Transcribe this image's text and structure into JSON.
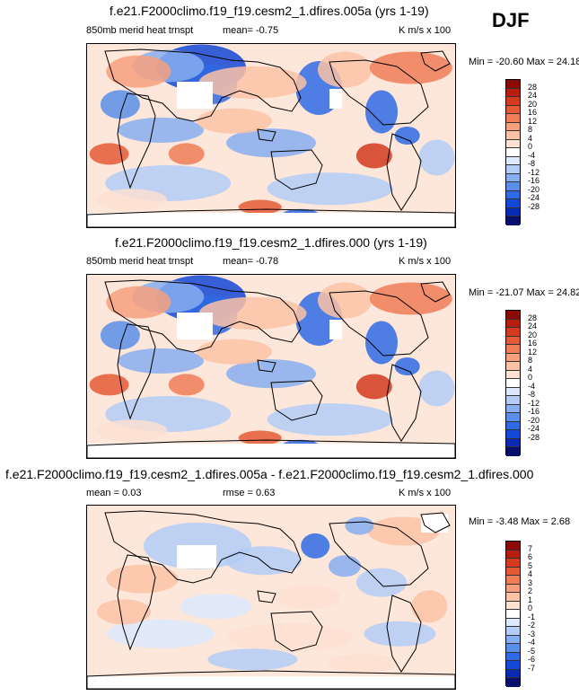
{
  "season": "DJF",
  "variable_label": "850mb merid heat trnspt",
  "units": "K m/s x 100",
  "colors": {
    "main_scale": [
      "#08106b",
      "#0a2ab5",
      "#1448d6",
      "#2f6ae4",
      "#5a8ee9",
      "#87aef0",
      "#b3cdf6",
      "#dce8fb",
      "#ffffff",
      "#fde1d2",
      "#fbc2a6",
      "#f7a07e",
      "#f07c58",
      "#e55a36",
      "#d43a1f",
      "#b81e10",
      "#8b0a06"
    ],
    "diff_scale": [
      "#08106b",
      "#0a2ab5",
      "#1448d6",
      "#2f6ae4",
      "#5a8ee9",
      "#87aef0",
      "#b3cdf6",
      "#dce8fb",
      "#ffffff",
      "#fde1d2",
      "#fbc2a6",
      "#f7a07e",
      "#f07c58",
      "#e55a36",
      "#d43a1f",
      "#b81e10",
      "#8b0a06"
    ]
  },
  "panels": [
    {
      "title": "f.e21.F2000climo.f19_f19.cesm2_1.dfires.005a (yrs 1-19)",
      "left_label": "850mb merid heat trnspt",
      "mid_label": "mean=  -0.75",
      "right_label": "K m/s x 100",
      "minmax": "Min = -20.60 Max =  24.18",
      "colorbar_labels": [
        "28",
        "24",
        "20",
        "16",
        "12",
        "8",
        "4",
        "0",
        "-4",
        "-8",
        "-12",
        "-16",
        "-20",
        "-24",
        "-28"
      ]
    },
    {
      "title": "f.e21.F2000climo.f19_f19.cesm2_1.dfires.000 (yrs 1-19)",
      "left_label": "850mb merid heat trnspt",
      "mid_label": "mean=  -0.78",
      "right_label": "K m/s x 100",
      "minmax": "Min = -21.07 Max =  24.82",
      "colorbar_labels": [
        "28",
        "24",
        "20",
        "16",
        "12",
        "8",
        "4",
        "0",
        "-4",
        "-8",
        "-12",
        "-16",
        "-20",
        "-24",
        "-28"
      ]
    },
    {
      "title": "f.e21.F2000climo.f19_f19.cesm2_1.dfires.005a - f.e21.F2000climo.f19_f19.cesm2_1.dfires.000",
      "left_label": "mean =  0.03",
      "mid_label": "rmse =  0.63",
      "right_label": "K m/s x 100",
      "minmax": "Min =  -3.48 Max =  2.68",
      "colorbar_labels": [
        "7",
        "6",
        "5",
        "4",
        "3",
        "2",
        "1",
        "0",
        "-1",
        "-2",
        "-3",
        "-4",
        "-5",
        "-6",
        "-7"
      ]
    }
  ]
}
